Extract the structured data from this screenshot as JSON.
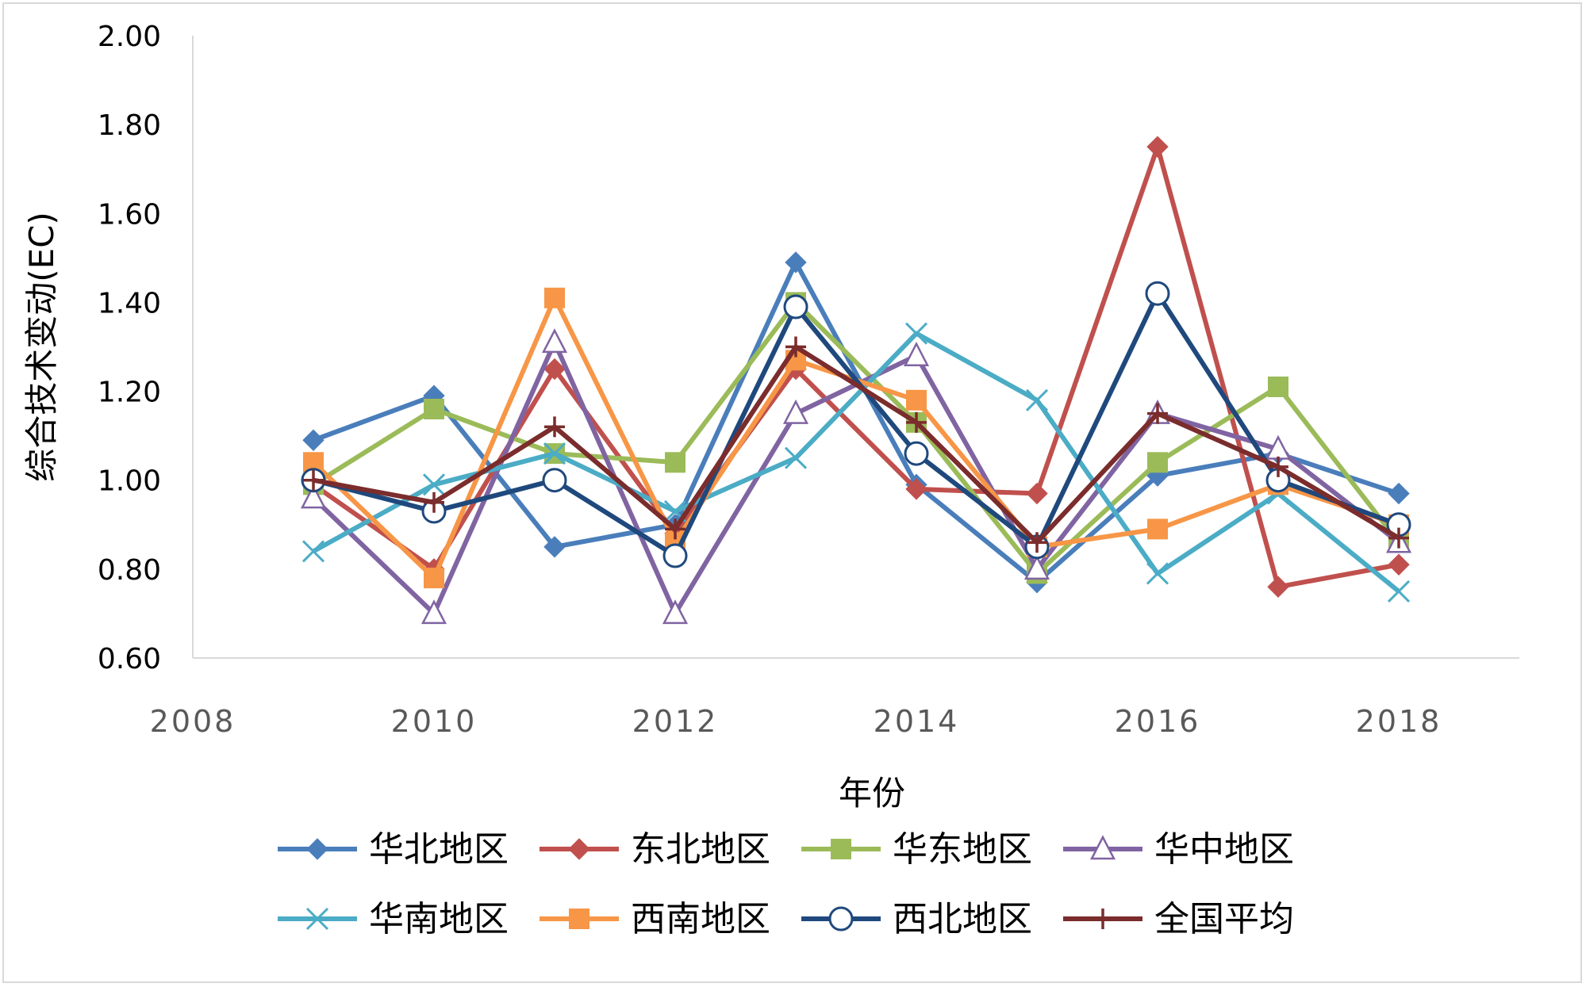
{
  "chart_data": {
    "type": "line",
    "title": "",
    "xlabel": "年份",
    "ylabel": "综合技术变动(EC)",
    "xlim": [
      2008,
      2019
    ],
    "ylim": [
      0.6,
      2.0
    ],
    "x_ticks": [
      "2008",
      "2010",
      "2012",
      "2014",
      "2016",
      "2018"
    ],
    "y_ticks": [
      "0.60",
      "0.80",
      "1.00",
      "1.20",
      "1.40",
      "1.60",
      "1.80",
      "2.00"
    ],
    "grid": false,
    "legend_position": "bottom",
    "x": [
      2009,
      2010,
      2011,
      2012,
      2013,
      2014,
      2015,
      2016,
      2017,
      2018
    ],
    "series": [
      {
        "name": "华北地区",
        "color": "#4a7ebb",
        "marker": "diamond",
        "values": [
          1.09,
          1.19,
          0.85,
          0.9,
          1.49,
          0.99,
          0.77,
          1.01,
          1.06,
          0.97
        ]
      },
      {
        "name": "东北地区",
        "color": "#c0504d",
        "marker": "diamond",
        "values": [
          0.99,
          0.8,
          1.25,
          0.88,
          1.25,
          0.98,
          0.97,
          1.75,
          0.76,
          0.81
        ]
      },
      {
        "name": "华东地区",
        "color": "#9bbb59",
        "marker": "square",
        "values": [
          0.99,
          1.16,
          1.06,
          1.04,
          1.4,
          1.13,
          0.79,
          1.04,
          1.21,
          0.86
        ]
      },
      {
        "name": "华中地区",
        "color": "#8064a2",
        "marker": "triangle",
        "values": [
          0.96,
          0.7,
          1.31,
          0.7,
          1.15,
          1.28,
          0.8,
          1.15,
          1.07,
          0.86
        ]
      },
      {
        "name": "华南地区",
        "color": "#4bacc6",
        "marker": "x",
        "values": [
          0.84,
          0.99,
          1.06,
          0.93,
          1.05,
          1.33,
          1.18,
          0.79,
          0.97,
          0.75
        ]
      },
      {
        "name": "西南地区",
        "color": "#f79646",
        "marker": "square",
        "values": [
          1.04,
          0.78,
          1.41,
          0.86,
          1.27,
          1.18,
          0.85,
          0.89,
          0.99,
          0.9
        ]
      },
      {
        "name": "西北地区",
        "color": "#1f497d",
        "marker": "circle",
        "values": [
          1.0,
          0.93,
          1.0,
          0.83,
          1.39,
          1.06,
          0.85,
          1.42,
          1.0,
          0.9
        ]
      },
      {
        "name": "全国平均",
        "color": "#7b2c2c",
        "marker": "plus",
        "values": [
          1.0,
          0.95,
          1.12,
          0.89,
          1.3,
          1.13,
          0.86,
          1.15,
          1.03,
          0.87
        ]
      }
    ]
  }
}
